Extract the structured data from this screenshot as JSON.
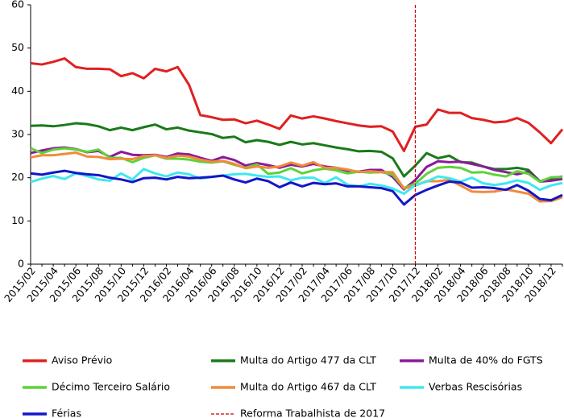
{
  "chart_data": {
    "type": "line",
    "categories": [
      "2015/02",
      null,
      "2015/04",
      null,
      "2015/06",
      null,
      "2015/08",
      null,
      "2015/10",
      null,
      "2015/12",
      null,
      "2016/02",
      null,
      "2016/04",
      null,
      "2016/06",
      null,
      "2016/08",
      null,
      "2016/10",
      null,
      "2016/12",
      null,
      "2017/02",
      null,
      "2017/04",
      null,
      "2017/06",
      null,
      "2017/08",
      null,
      "2017/10",
      null,
      "2017/12",
      null,
      "2018/02",
      null,
      "2018/04",
      null,
      "2018/06",
      null,
      "2018/08",
      null,
      "2018/10",
      null,
      "2018/12",
      null
    ],
    "series": [
      {
        "name": "Aviso Prévio",
        "color": "#e02020",
        "values": [
          46.5,
          46.2,
          46.8,
          47.6,
          45.6,
          45.2,
          45.2,
          45.1,
          43.5,
          44.2,
          43,
          45.2,
          44.6,
          45.6,
          41.5,
          34.5,
          34,
          33.4,
          33.5,
          32.6,
          33.2,
          32.3,
          31.3,
          34.4,
          33.7,
          34.2,
          33.7,
          33.1,
          32.6,
          32.1,
          31.8,
          31.9,
          30.7,
          26.2,
          31.8,
          32.3,
          35.8,
          35,
          35,
          33.8,
          33.4,
          32.8,
          33,
          33.8,
          32.7,
          30.5,
          28,
          31.2
        ]
      },
      {
        "name": "Multa do Artigo 477 da CLT",
        "color": "#1a7a1a",
        "values": [
          32,
          32.1,
          31.9,
          32.2,
          32.6,
          32.4,
          31.9,
          31,
          31.6,
          31,
          31.7,
          32.3,
          31.2,
          31.6,
          30.9,
          30.5,
          30.1,
          29.2,
          29.5,
          28.2,
          28.7,
          28.3,
          27.6,
          28.3,
          27.7,
          28,
          27.5,
          27,
          26.6,
          26.1,
          26.2,
          26,
          24.5,
          20.3,
          22.8,
          25.7,
          24.5,
          25.1,
          23.6,
          23.5,
          22.6,
          22,
          22,
          22.3,
          21.8,
          19.2,
          19.8,
          20.3
        ]
      },
      {
        "name": "Multa de 40% do FGTS",
        "color": "#8b1a9a",
        "values": [
          25.7,
          26.3,
          26.8,
          27,
          26.6,
          25.9,
          26.2,
          24.8,
          26,
          25.3,
          25.2,
          25.3,
          24.8,
          25.6,
          25.4,
          24.6,
          23.9,
          24.8,
          24.1,
          22.8,
          23.4,
          22.9,
          22.3,
          23,
          22.6,
          23.2,
          22.6,
          22.3,
          21.6,
          21.4,
          21.8,
          21.8,
          20.2,
          17.3,
          19.5,
          22.5,
          23.8,
          23.6,
          23.7,
          23.2,
          22.6,
          21.8,
          21.3,
          20.8,
          21.4,
          19.1,
          19.3,
          19.7
        ]
      },
      {
        "name": "Décimo Terceiro Salário",
        "color": "#5ed23a",
        "values": [
          26.8,
          25.7,
          26.5,
          26.8,
          26.5,
          26,
          26.5,
          24.6,
          24.6,
          23.6,
          24.6,
          25.2,
          24.4,
          24.4,
          24.2,
          23.7,
          23.5,
          23.8,
          23,
          22.3,
          23.1,
          20.9,
          21.2,
          22.2,
          21,
          21.7,
          22.1,
          21.7,
          21,
          21.4,
          21.2,
          21.3,
          20.7,
          17.6,
          18.6,
          20.9,
          22.3,
          22.5,
          22.3,
          21.2,
          21.3,
          20.7,
          20.3,
          21.5,
          20.9,
          19.1,
          20.1,
          20.2
        ]
      },
      {
        "name": "Multa do Artigo 467 da CLT",
        "color": "#f08c3a",
        "values": [
          24.7,
          25.2,
          25.2,
          25.5,
          25.8,
          24.9,
          24.8,
          24.3,
          24.4,
          24.3,
          25,
          25.2,
          24.6,
          25.1,
          24.9,
          24.2,
          23.7,
          23.9,
          23.2,
          22.2,
          22.6,
          22.3,
          22.6,
          23.5,
          22.8,
          23.6,
          22.3,
          22.3,
          21.9,
          21.3,
          21.5,
          21.3,
          21.3,
          17.5,
          18.2,
          19.2,
          19.2,
          19.5,
          18.2,
          16.8,
          16.7,
          16.8,
          17.3,
          16.8,
          16.3,
          14.5,
          14.6,
          15.5
        ]
      },
      {
        "name": "Verbas Rescisórias",
        "color": "#3fe8f0",
        "values": [
          19,
          19.8,
          20.4,
          19.7,
          21,
          20.4,
          19.6,
          19.3,
          21,
          19.6,
          22,
          21,
          20.3,
          21.2,
          20.8,
          19.8,
          20.2,
          20.5,
          20.8,
          20.9,
          20.5,
          20.2,
          20.3,
          19.4,
          20,
          20,
          18.8,
          20.1,
          18.4,
          18,
          18.6,
          18.2,
          17.5,
          16.3,
          18.3,
          19.1,
          20.3,
          19.9,
          19.1,
          20,
          18.7,
          18.3,
          18.7,
          19.4,
          18.8,
          17.2,
          18.2,
          18.8
        ]
      },
      {
        "name": "Férias",
        "color": "#1515c8",
        "values": [
          21,
          20.7,
          21.2,
          21.6,
          21.1,
          20.8,
          20.6,
          20,
          19.6,
          19,
          19.9,
          20,
          19.6,
          20.2,
          19.9,
          20,
          20.2,
          20.5,
          19.6,
          18.9,
          19.8,
          19.2,
          17.8,
          18.9,
          18,
          18.8,
          18.5,
          18.7,
          18,
          18,
          17.8,
          17.6,
          16.9,
          13.8,
          16,
          17.2,
          18.2,
          19.1,
          18.9,
          17.7,
          17.8,
          17.6,
          17.2,
          18.3,
          17,
          15.1,
          14.8,
          16
        ]
      }
    ],
    "annotations": [
      {
        "label": "Reforma Trabalhista de 2017",
        "x": "2017/12",
        "color": "#cc0000"
      }
    ],
    "ylim": [
      0,
      60
    ],
    "yticks": [
      0,
      10,
      20,
      30,
      40,
      50,
      60
    ],
    "grid": false
  }
}
